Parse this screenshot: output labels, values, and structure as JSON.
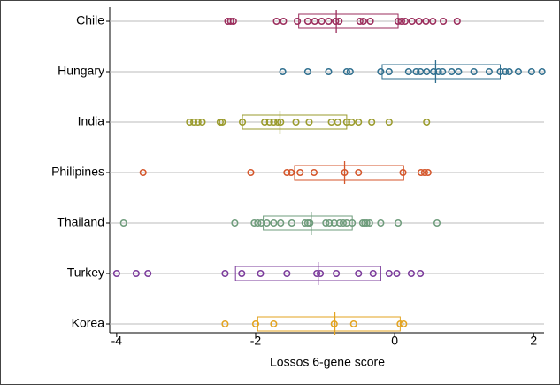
{
  "chart_data": {
    "type": "box",
    "x_label": "Lossos 6-gene score",
    "xlim": [
      -4.1,
      2.15
    ],
    "xticks": [
      -4,
      -2,
      0,
      2
    ],
    "grid": true,
    "groups": [
      {
        "name": "Chile",
        "color": "#9b2d5c",
        "q1": -1.38,
        "median": -0.84,
        "q3": 0.05,
        "points": [
          -2.4,
          -2.36,
          -2.32,
          -1.7,
          -1.6,
          -1.4,
          -1.25,
          -1.15,
          -1.05,
          -0.95,
          -0.85,
          -0.8,
          -0.5,
          -0.45,
          -0.35,
          0.05,
          0.1,
          0.15,
          0.25,
          0.35,
          0.45,
          0.55,
          0.7,
          0.9
        ]
      },
      {
        "name": "Hungary",
        "color": "#2f6f8f",
        "q1": -0.18,
        "median": 0.59,
        "q3": 1.52,
        "points": [
          -1.61,
          -1.25,
          -0.95,
          -0.69,
          -0.64,
          -0.2,
          -0.08,
          0.2,
          0.31,
          0.37,
          0.46,
          0.56,
          0.63,
          0.69,
          0.82,
          0.92,
          1.14,
          1.36,
          1.52,
          1.59,
          1.65,
          1.78,
          1.97,
          2.12
        ]
      },
      {
        "name": "India",
        "color": "#9a9b2c",
        "q1": -2.19,
        "median": -1.65,
        "q3": -0.69,
        "points": [
          -2.95,
          -2.89,
          -2.83,
          -2.77,
          -2.51,
          -2.48,
          -2.19,
          -1.87,
          -1.8,
          -1.74,
          -1.68,
          -1.64,
          -1.42,
          -1.23,
          -0.91,
          -0.82,
          -0.69,
          -0.62,
          -0.52,
          -0.33,
          -0.08,
          0.46
        ]
      },
      {
        "name": "Philipines",
        "color": "#d4562b",
        "q1": -1.44,
        "median": -0.72,
        "q3": 0.13,
        "points": [
          -3.62,
          -2.07,
          -1.55,
          -1.49,
          -1.36,
          -1.16,
          -0.72,
          -0.52,
          0.12,
          0.38,
          0.43,
          0.48
        ]
      },
      {
        "name": "Thailand",
        "color": "#6f9c7c",
        "q1": -1.89,
        "median": -1.2,
        "q3": -0.61,
        "points": [
          -3.9,
          -2.3,
          -2.02,
          -1.97,
          -1.92,
          -1.84,
          -1.74,
          -1.64,
          -1.48,
          -1.29,
          -1.25,
          -1.22,
          -0.99,
          -0.94,
          -0.87,
          -0.79,
          -0.74,
          -0.69,
          -0.61,
          -0.46,
          -0.43,
          -0.4,
          -0.36,
          -0.2,
          0.05,
          0.61
        ]
      },
      {
        "name": "Turkey",
        "color": "#7b3b9b",
        "q1": -2.29,
        "median": -1.1,
        "q3": -0.2,
        "points": [
          -4.0,
          -3.72,
          -3.55,
          -2.44,
          -2.2,
          -1.93,
          -1.55,
          -1.12,
          -1.07,
          -0.84,
          -0.52,
          -0.31,
          -0.08,
          0.03,
          0.24,
          0.37
        ]
      },
      {
        "name": "Korea",
        "color": "#e3a31f",
        "q1": -1.97,
        "median": -0.86,
        "q3": 0.08,
        "points": [
          -2.44,
          -2.0,
          -1.74,
          -0.87,
          -0.59,
          0.08,
          0.13
        ]
      }
    ]
  }
}
